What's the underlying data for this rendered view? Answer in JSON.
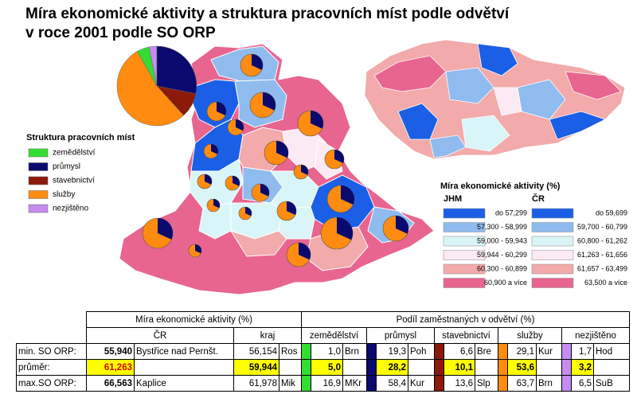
{
  "title": [
    "Míra ekonomické aktivity a struktura pracovních míst podle odvětví",
    "v roce 2001 podle SO ORP"
  ],
  "structure_legend": {
    "title": "Struktura pracovních míst",
    "items": [
      {
        "label": "zemědělství",
        "color": "#33dd33"
      },
      {
        "label": "průmysl",
        "color": "#0a0a6e"
      },
      {
        "label": "stavebnictví",
        "color": "#8b1a0a"
      },
      {
        "label": "služby",
        "color": "#ff8c10"
      },
      {
        "label": "nezjištěno",
        "color": "#c68cf0"
      }
    ]
  },
  "activity_legend": {
    "title": "Míra ekonomické aktivity (%)",
    "columns": [
      {
        "name": "JHM",
        "classes": [
          {
            "label": "do 57,299",
            "color": "#1a5fe6"
          },
          {
            "label": "57,300 - 58,999",
            "color": "#8fbbee"
          },
          {
            "label": "59,000 - 59,943",
            "color": "#d9f5f8"
          },
          {
            "label": "59,944 - 60,299",
            "color": "#fbe9f3"
          },
          {
            "label": "60,300 - 60,899",
            "color": "#f2aaaa"
          },
          {
            "label": "60,900 a více",
            "color": "#e8658f"
          }
        ]
      },
      {
        "name": "ČR",
        "classes": [
          {
            "label": "do 59,699",
            "color": "#1a5fe6"
          },
          {
            "label": "59,700 - 60,799",
            "color": "#8fbbee"
          },
          {
            "label": "60,800 - 61,262",
            "color": "#d9f5f8"
          },
          {
            "label": "61,263 - 61,656",
            "color": "#fbe9f3"
          },
          {
            "label": "61,657 - 63,499",
            "color": "#f2aaaa"
          },
          {
            "label": "63,500 a více",
            "color": "#e8658f"
          }
        ]
      }
    ]
  },
  "table": {
    "header1": [
      "Míra ekonomické aktivity (%)",
      "Podíl zaměstnaných v odvětví (%)"
    ],
    "header2": [
      "ČR",
      "kraj",
      "zemědělství",
      "průmysl",
      "stavebnictví",
      "služby",
      "nezjištěno"
    ],
    "rows": [
      {
        "label": "min. SO ORP:",
        "cells": [
          "55,940",
          "Bystřice nad Pernšt.",
          "56,154",
          "Ros",
          "1,0",
          "Brn",
          "19,3",
          "Poh",
          "6,6",
          "Bre",
          "29,1",
          "Kur",
          "1,7",
          "Hod"
        ]
      },
      {
        "label": "průměr:",
        "cells": [
          "61,263",
          null,
          "59,944",
          null,
          "5,0",
          null,
          "28,2",
          null,
          "10,1",
          null,
          "53,6",
          null,
          "3,2",
          null
        ]
      },
      {
        "label": "max.SO ORP:",
        "cells": [
          "66,563",
          "Kaplice",
          "61,978",
          "Mik",
          "16,9",
          "MKr",
          "58,4",
          "Kur",
          "13,6",
          "Slp",
          "63,7",
          "Brn",
          "6,5",
          "SuB"
        ]
      }
    ]
  }
}
